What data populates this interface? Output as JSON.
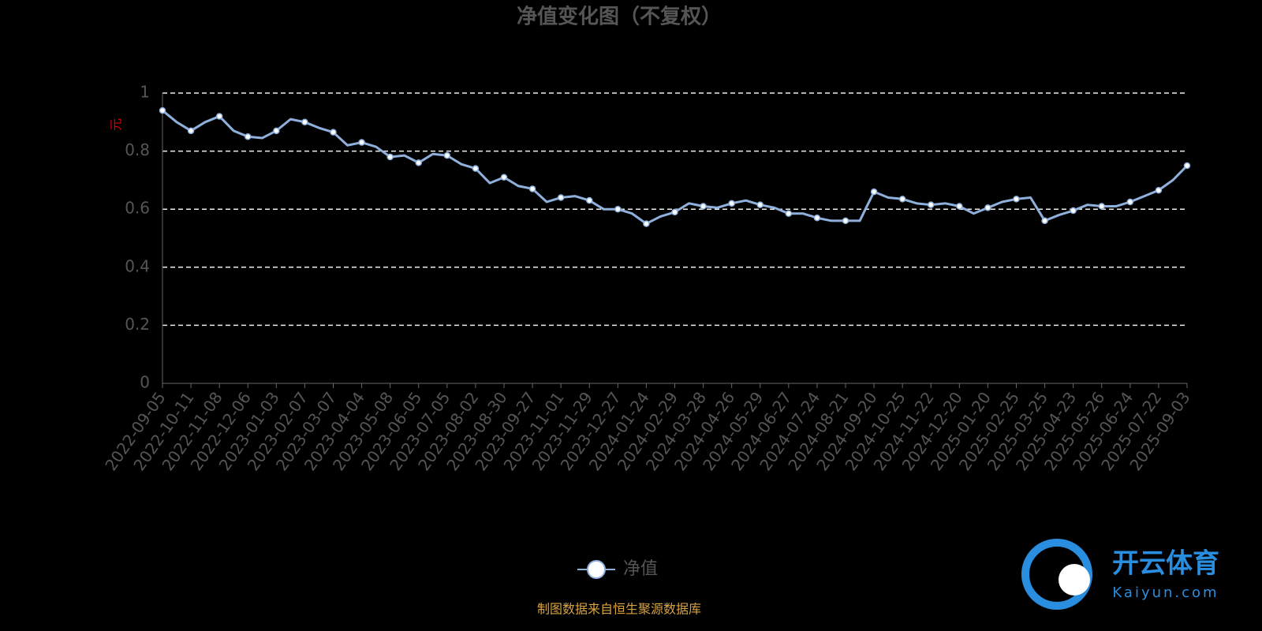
{
  "chart_data": {
    "type": "line",
    "title": "净值变化图（不复权）",
    "ylabel": "元",
    "x": [
      "2022-09-05",
      null,
      "2022-10-11",
      null,
      "2022-11-08",
      null,
      "2022-12-06",
      null,
      "2023-01-03",
      null,
      "2023-02-07",
      null,
      "2023-03-07",
      null,
      "2023-04-04",
      null,
      "2023-05-08",
      null,
      "2023-06-05",
      null,
      "2023-07-05",
      null,
      "2023-08-02",
      null,
      "2023-08-30",
      null,
      "2023-09-27",
      null,
      "2023-11-01",
      null,
      "2023-11-29",
      null,
      "2023-12-27",
      null,
      "2024-01-24",
      null,
      "2024-02-29",
      null,
      "2024-03-28",
      null,
      "2024-04-26",
      null,
      "2024-05-29",
      null,
      "2024-06-27",
      null,
      "2024-07-24",
      null,
      "2024-08-21",
      null,
      "2024-09-20",
      null,
      "2024-10-25",
      null,
      "2024-11-22",
      null,
      "2024-12-20",
      null,
      "2025-01-20",
      null,
      "2025-02-25",
      null,
      "2025-03-25",
      null,
      "2025-04-23",
      null,
      "2025-05-26",
      null,
      "2025-06-24",
      null,
      "2025-07-22",
      null,
      "2025-09-03"
    ],
    "series": [
      {
        "name": "净值",
        "color": "#8fb0dc",
        "values": [
          0.94,
          0.9,
          0.87,
          0.9,
          0.92,
          0.87,
          0.85,
          0.845,
          0.87,
          0.91,
          0.9,
          0.88,
          0.865,
          0.82,
          0.83,
          0.815,
          0.78,
          0.785,
          0.76,
          0.79,
          0.785,
          0.755,
          0.74,
          0.69,
          0.71,
          0.68,
          0.67,
          0.625,
          0.64,
          0.645,
          0.63,
          0.6,
          0.6,
          0.585,
          0.55,
          0.575,
          0.59,
          0.62,
          0.61,
          0.605,
          0.62,
          0.63,
          0.615,
          0.605,
          0.585,
          0.585,
          0.57,
          0.56,
          0.56,
          0.56,
          0.66,
          0.64,
          0.635,
          0.62,
          0.615,
          0.62,
          0.61,
          0.585,
          0.605,
          0.625,
          0.635,
          0.64,
          0.56,
          0.58,
          0.595,
          0.615,
          0.61,
          0.61,
          0.625,
          0.645,
          0.665,
          0.7,
          0.75
        ]
      }
    ],
    "ylim": [
      0,
      1
    ],
    "yticks": [
      0,
      0.2,
      0.4,
      0.6,
      0.8,
      1
    ],
    "grid": true,
    "source": "制图数据来自恒生聚源数据库",
    "watermark": [
      "开云体育",
      "Kaiyun.com"
    ]
  }
}
